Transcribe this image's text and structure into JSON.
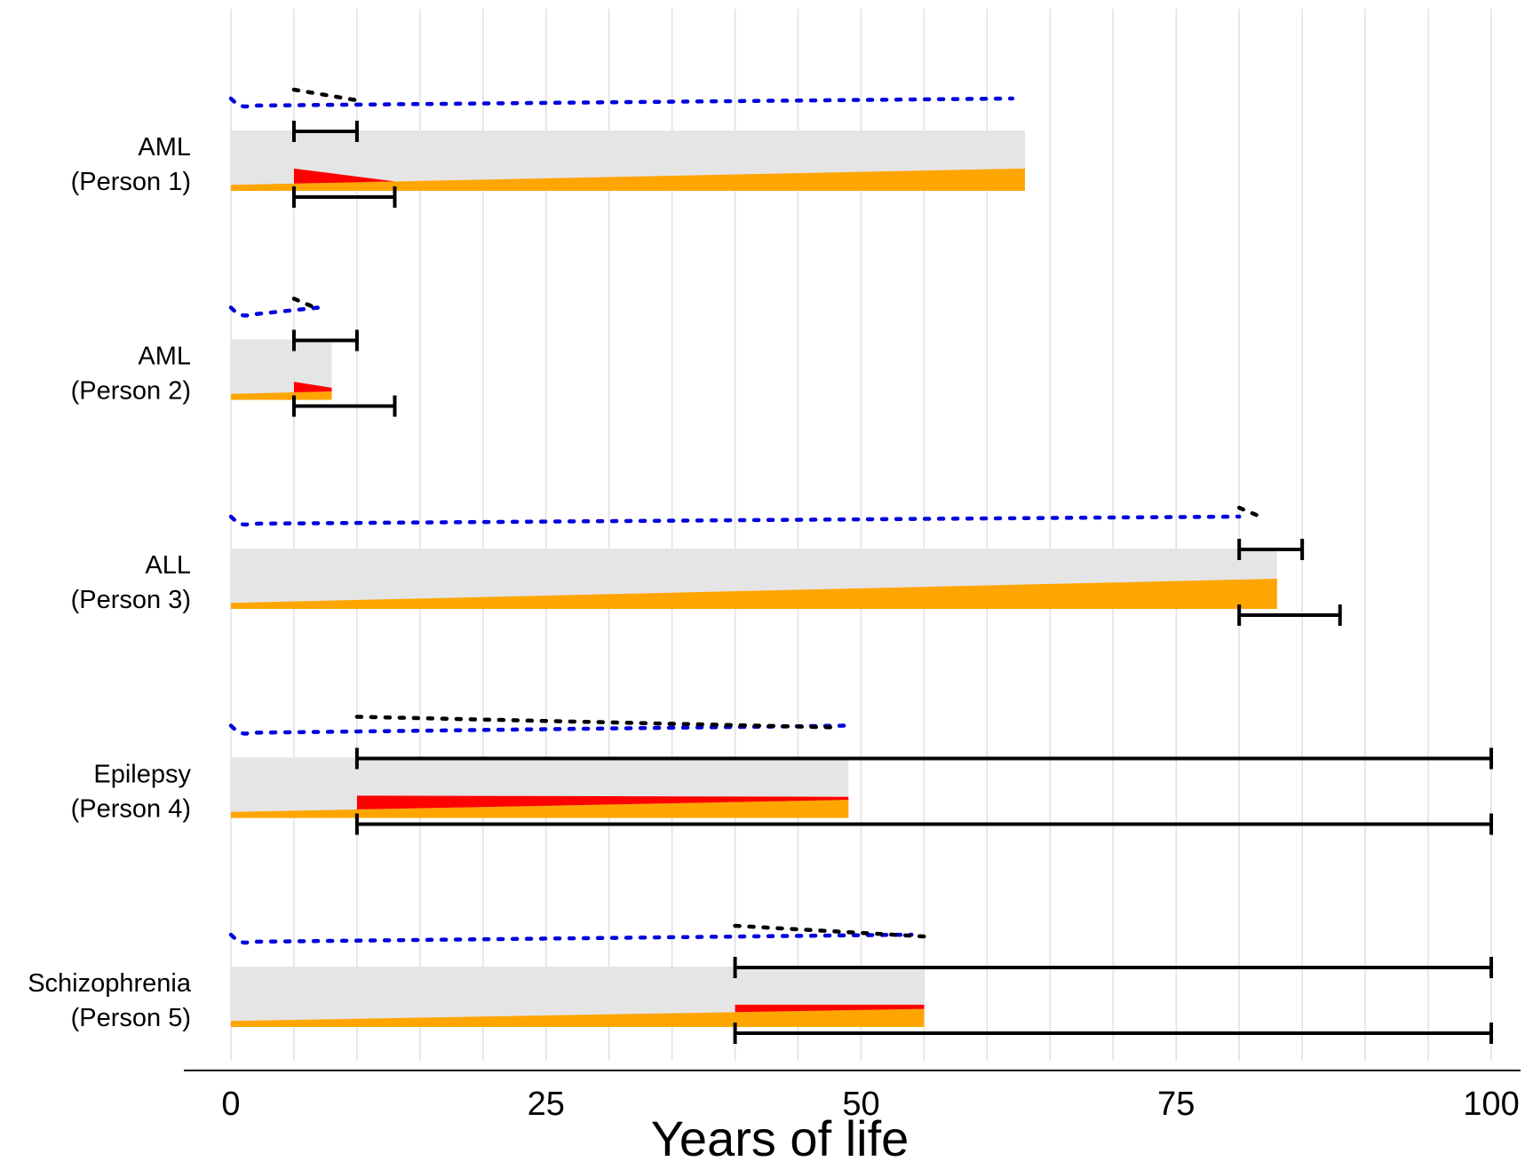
{
  "chart_data": {
    "type": "timeline",
    "xlabel": "Years of life",
    "xlim": [
      0,
      100
    ],
    "x_ticks": [
      0,
      25,
      50,
      75,
      100
    ],
    "x_tick_labels": [
      "0",
      "25",
      "50",
      "75",
      "100"
    ],
    "grid": true,
    "colors": {
      "background_bar": "#e5e5e5",
      "baseline_fill": "#ffa500",
      "disease_fill": "#ff0000",
      "blue_dotted": "#0000dd",
      "black_dotted": "#000000",
      "interval": "#000000",
      "grid": "#e0e0e0"
    },
    "rows": [
      {
        "label_line1": "AML",
        "label_line2": "(Person 1)",
        "lifespan": 63,
        "onset": 5,
        "orange_start": 0.1,
        "orange_end": 0.37,
        "red_top_at_onset": 0.37,
        "red_end": 13,
        "red_top_at_end": 0.0,
        "blue_dotted_end": 62,
        "black_dotted": [
          5,
          10
        ],
        "upper_interval": [
          5,
          10
        ],
        "lower_interval": [
          5,
          13
        ]
      },
      {
        "label_line1": "AML",
        "label_line2": "(Person 2)",
        "lifespan": 8,
        "onset": 5,
        "orange_start": 0.1,
        "orange_end": 0.14,
        "red_top_at_onset": 0.3,
        "red_end": 8,
        "red_top_at_end": 0.2,
        "blue_dotted_end": 7,
        "black_dotted": [
          5,
          7
        ],
        "upper_interval": [
          5,
          10
        ],
        "lower_interval": [
          5,
          13
        ]
      },
      {
        "label_line1": "ALL",
        "label_line2": "(Person 3)",
        "lifespan": 83,
        "onset": 80,
        "orange_start": 0.1,
        "orange_end": 0.5,
        "red_top_at_onset": 0.35,
        "red_end": 83,
        "red_top_at_end": 0.25,
        "blue_dotted_end": 80,
        "black_dotted": [
          80,
          82
        ],
        "upper_interval": [
          80,
          85
        ],
        "lower_interval": [
          80,
          88
        ]
      },
      {
        "label_line1": "Epilepsy",
        "label_line2": "(Person 4)",
        "lifespan": 49,
        "onset": 10,
        "orange_start": 0.1,
        "orange_end": 0.3,
        "red_top_at_onset": 0.37,
        "red_end": 49,
        "red_top_at_end": 0.35,
        "blue_dotted_end": 49,
        "black_dotted": [
          10,
          48
        ],
        "upper_interval": [
          10,
          100
        ],
        "lower_interval": [
          10,
          100
        ]
      },
      {
        "label_line1": "Schizophrenia",
        "label_line2": "(Person 5)",
        "lifespan": 55,
        "onset": 40,
        "orange_start": 0.1,
        "orange_end": 0.3,
        "red_top_at_onset": 0.37,
        "red_end": 55,
        "red_top_at_end": 0.37,
        "blue_dotted_end": 54,
        "black_dotted": [
          40,
          55
        ],
        "upper_interval": [
          40,
          100
        ],
        "lower_interval": [
          40,
          100
        ]
      }
    ]
  }
}
